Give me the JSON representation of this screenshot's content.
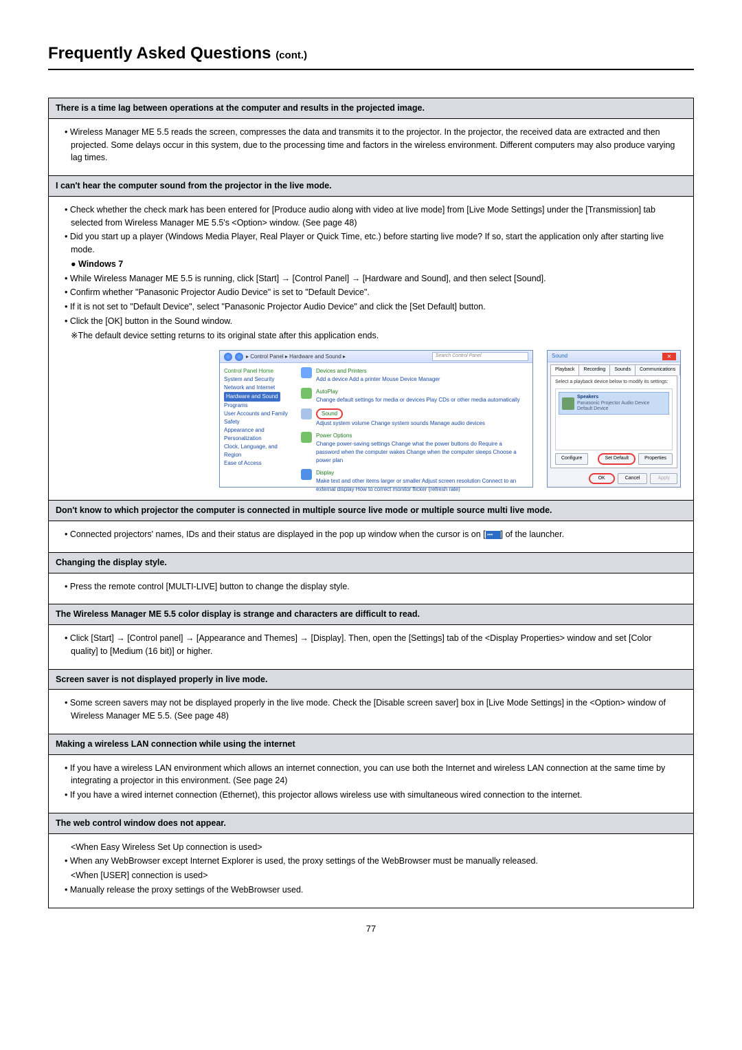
{
  "title_main": "Frequently Asked Questions",
  "title_cont": "(cont.)",
  "q1": "There is a time lag between operations at the computer and results in the projected image.",
  "a1_b1": "• Wireless Manager ME 5.5 reads the screen, compresses the data and transmits it to the projector. In the projector, the received data are extracted and then projected. Some delays occur in this system, due to the processing time and factors in the wireless environment. Different computers may also produce varying lag times.",
  "q2": "I can't hear the computer sound from the projector in the live mode.",
  "a2_b1": "• Check whether the check mark has been entered for [Produce audio along with video at live mode] from [Live Mode Settings] under the [Transmission] tab selected from Wireless Manager ME 5.5's <Option> window. (See page 48)",
  "a2_b2": "• Did you start up a player (Windows Media Player, Real Player or Quick Time, etc.) before starting live mode? If so, start the application only after starting live mode.",
  "a2_win7": "● Windows 7",
  "a2_b3": "• While Wireless Manager ME 5.5 is running, click [Start] → [Control Panel] → [Hardware and Sound], and then select [Sound].",
  "a2_b4": "• Confirm whether \"Panasonic Projector Audio Device\" is set to \"Default Device\".",
  "a2_b5": "• If it is not set to \"Default Device\", select \"Panasonic Projector Audio Device\" and click the [Set Default] button.",
  "a2_b6": "• Click the [OK] button in the Sound window.",
  "a2_note": "※The default device setting returns to its original state after this application ends.",
  "cp": {
    "crumbs": "▸ Control Panel ▸ Hardware and Sound ▸",
    "search": "Search Control Panel",
    "side": {
      "home": "Control Panel Home",
      "sys": "System and Security",
      "net": "Network and Internet",
      "hw": "Hardware and Sound",
      "prog": "Programs",
      "ua": "User Accounts and Family Safety",
      "app": "Appearance and Personalization",
      "clk": "Clock, Language, and Region",
      "eoa": "Ease of Access"
    },
    "items": {
      "dp_h": "Devices and Printers",
      "dp_s": "Add a device   Add a printer   Mouse   Device Manager",
      "ap_h": "AutoPlay",
      "ap_s": "Change default settings for media or devices   Play CDs or other media automatically",
      "snd_h": "Sound",
      "snd_s": "Adjust system volume   Change system sounds   Manage audio devices",
      "po_h": "Power Options",
      "po_s": "Change power-saving settings   Change what the power buttons do   Require a password when the computer wakes   Change when the computer sleeps   Choose a power plan",
      "dsp_h": "Display",
      "dsp_s": "Make text and other items larger or smaller   Adjust screen resolution   Connect to an external display   How to correct monitor flicker (refresh rate)"
    }
  },
  "snd": {
    "title": "Sound",
    "tabs": {
      "pb": "Playback",
      "rec": "Recording",
      "so": "Sounds",
      "com": "Communications"
    },
    "select_text": "Select a playback device below to modify its settings:",
    "dev_name": "Speakers",
    "dev_desc": "Panasonic Projector Audio Device",
    "dev_def": "Default Device",
    "configure": "Configure",
    "set_default": "Set Default",
    "properties": "Properties",
    "ok": "OK",
    "cancel": "Cancel",
    "apply": "Apply"
  },
  "q3": "Don't know to which projector the computer is connected in multiple source live mode or multiple source multi live mode.",
  "a3_pre": "• Connected projectors' names, IDs and their status are displayed in the pop up window when the cursor is on [",
  "a3_icon": "•••",
  "a3_post": "] of the launcher.",
  "q4": "Changing the display style.",
  "a4_b1": "• Press the remote control [MULTI-LIVE] button to change the display style.",
  "q5": "The Wireless Manager ME 5.5 color display is strange and characters are difficult to read.",
  "a5_b1": "• Click [Start] → [Control panel] → [Appearance and Themes] → [Display]. Then, open the [Settings] tab of the <Display Properties> window and set [Color quality] to [Medium (16 bit)] or higher.",
  "q6": "Screen saver is not displayed properly in live mode.",
  "a6_b1": "• Some screen savers may not be displayed properly in the live mode. Check the [Disable screen saver] box in [Live Mode Settings] in the <Option> window of Wireless Manager ME 5.5. (See page 48)",
  "q7": "Making a wireless LAN connection while using the internet",
  "a7_b1": "• If you have a wireless LAN environment which allows an internet connection, you can use both the Internet and wireless LAN connection at the same time by integrating a projector in this environment. (See page 24)",
  "a7_b2": "• If you have a wired internet connection (Ethernet), this projector allows wireless use with simultaneous wired connection to the internet.",
  "q8": "The web control window does not appear.",
  "a8_l1": "<When Easy Wireless Set Up connection is used>",
  "a8_l2": "• When any WebBrowser except Internet Explorer is used, the proxy settings of the WebBrowser must be manually released.",
  "a8_l3": "<When [USER] connection is used>",
  "a8_l4": "• Manually release the proxy settings of the WebBrowser used.",
  "page_num": "77"
}
